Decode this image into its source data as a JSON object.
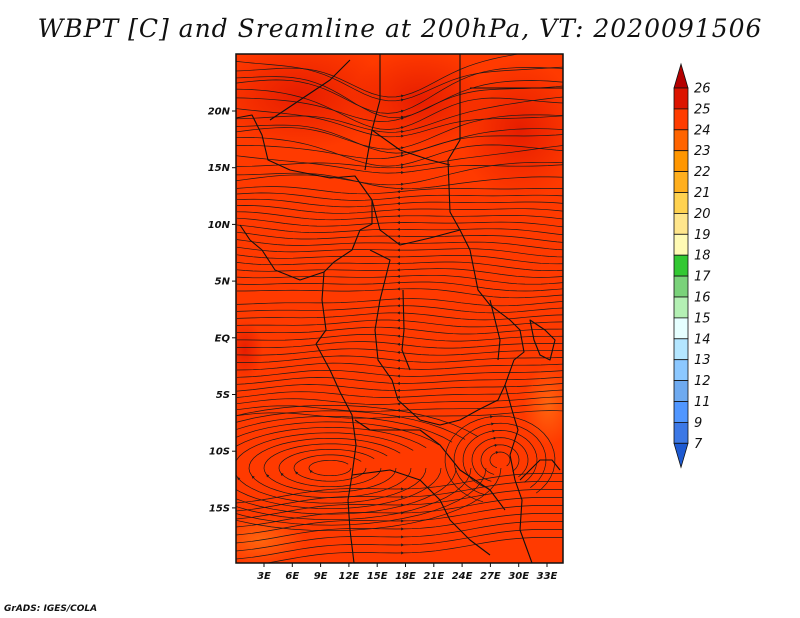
{
  "title": "WBPT [C] and Sreamline at 200hPa, VT: 2020091506",
  "credit": "GrADS: IGES/COLA",
  "map": {
    "variable": "Wet-bulb potential temperature",
    "units": "C",
    "level": "200hPa",
    "valid_time": "2020091506",
    "lon_labels": [
      "3E",
      "6E",
      "9E",
      "12E",
      "15E",
      "18E",
      "21E",
      "24E",
      "27E",
      "30E",
      "33E"
    ],
    "lat_labels": [
      "20N",
      "15N",
      "10N",
      "5N",
      "EQ",
      "5S",
      "10S",
      "15S"
    ],
    "dominant_color": "#ff3a00"
  },
  "colorbar": {
    "labels": [
      "26",
      "25",
      "24",
      "23",
      "22",
      "21",
      "20",
      "19",
      "18",
      "17",
      "16",
      "15",
      "14",
      "13",
      "12",
      "11",
      "9",
      "7"
    ],
    "colors": [
      "#b40000",
      "#dc1400",
      "#ff3c00",
      "#ff6400",
      "#ff9600",
      "#ffaf1e",
      "#ffd250",
      "#ffe68c",
      "#fffab4",
      "#32c832",
      "#7ad27a",
      "#b4f0b4",
      "#e6ffff",
      "#b4e6ff",
      "#8cc8ff",
      "#6eaaf0",
      "#5096ff",
      "#3c78e6",
      "#1e5ad2"
    ]
  }
}
